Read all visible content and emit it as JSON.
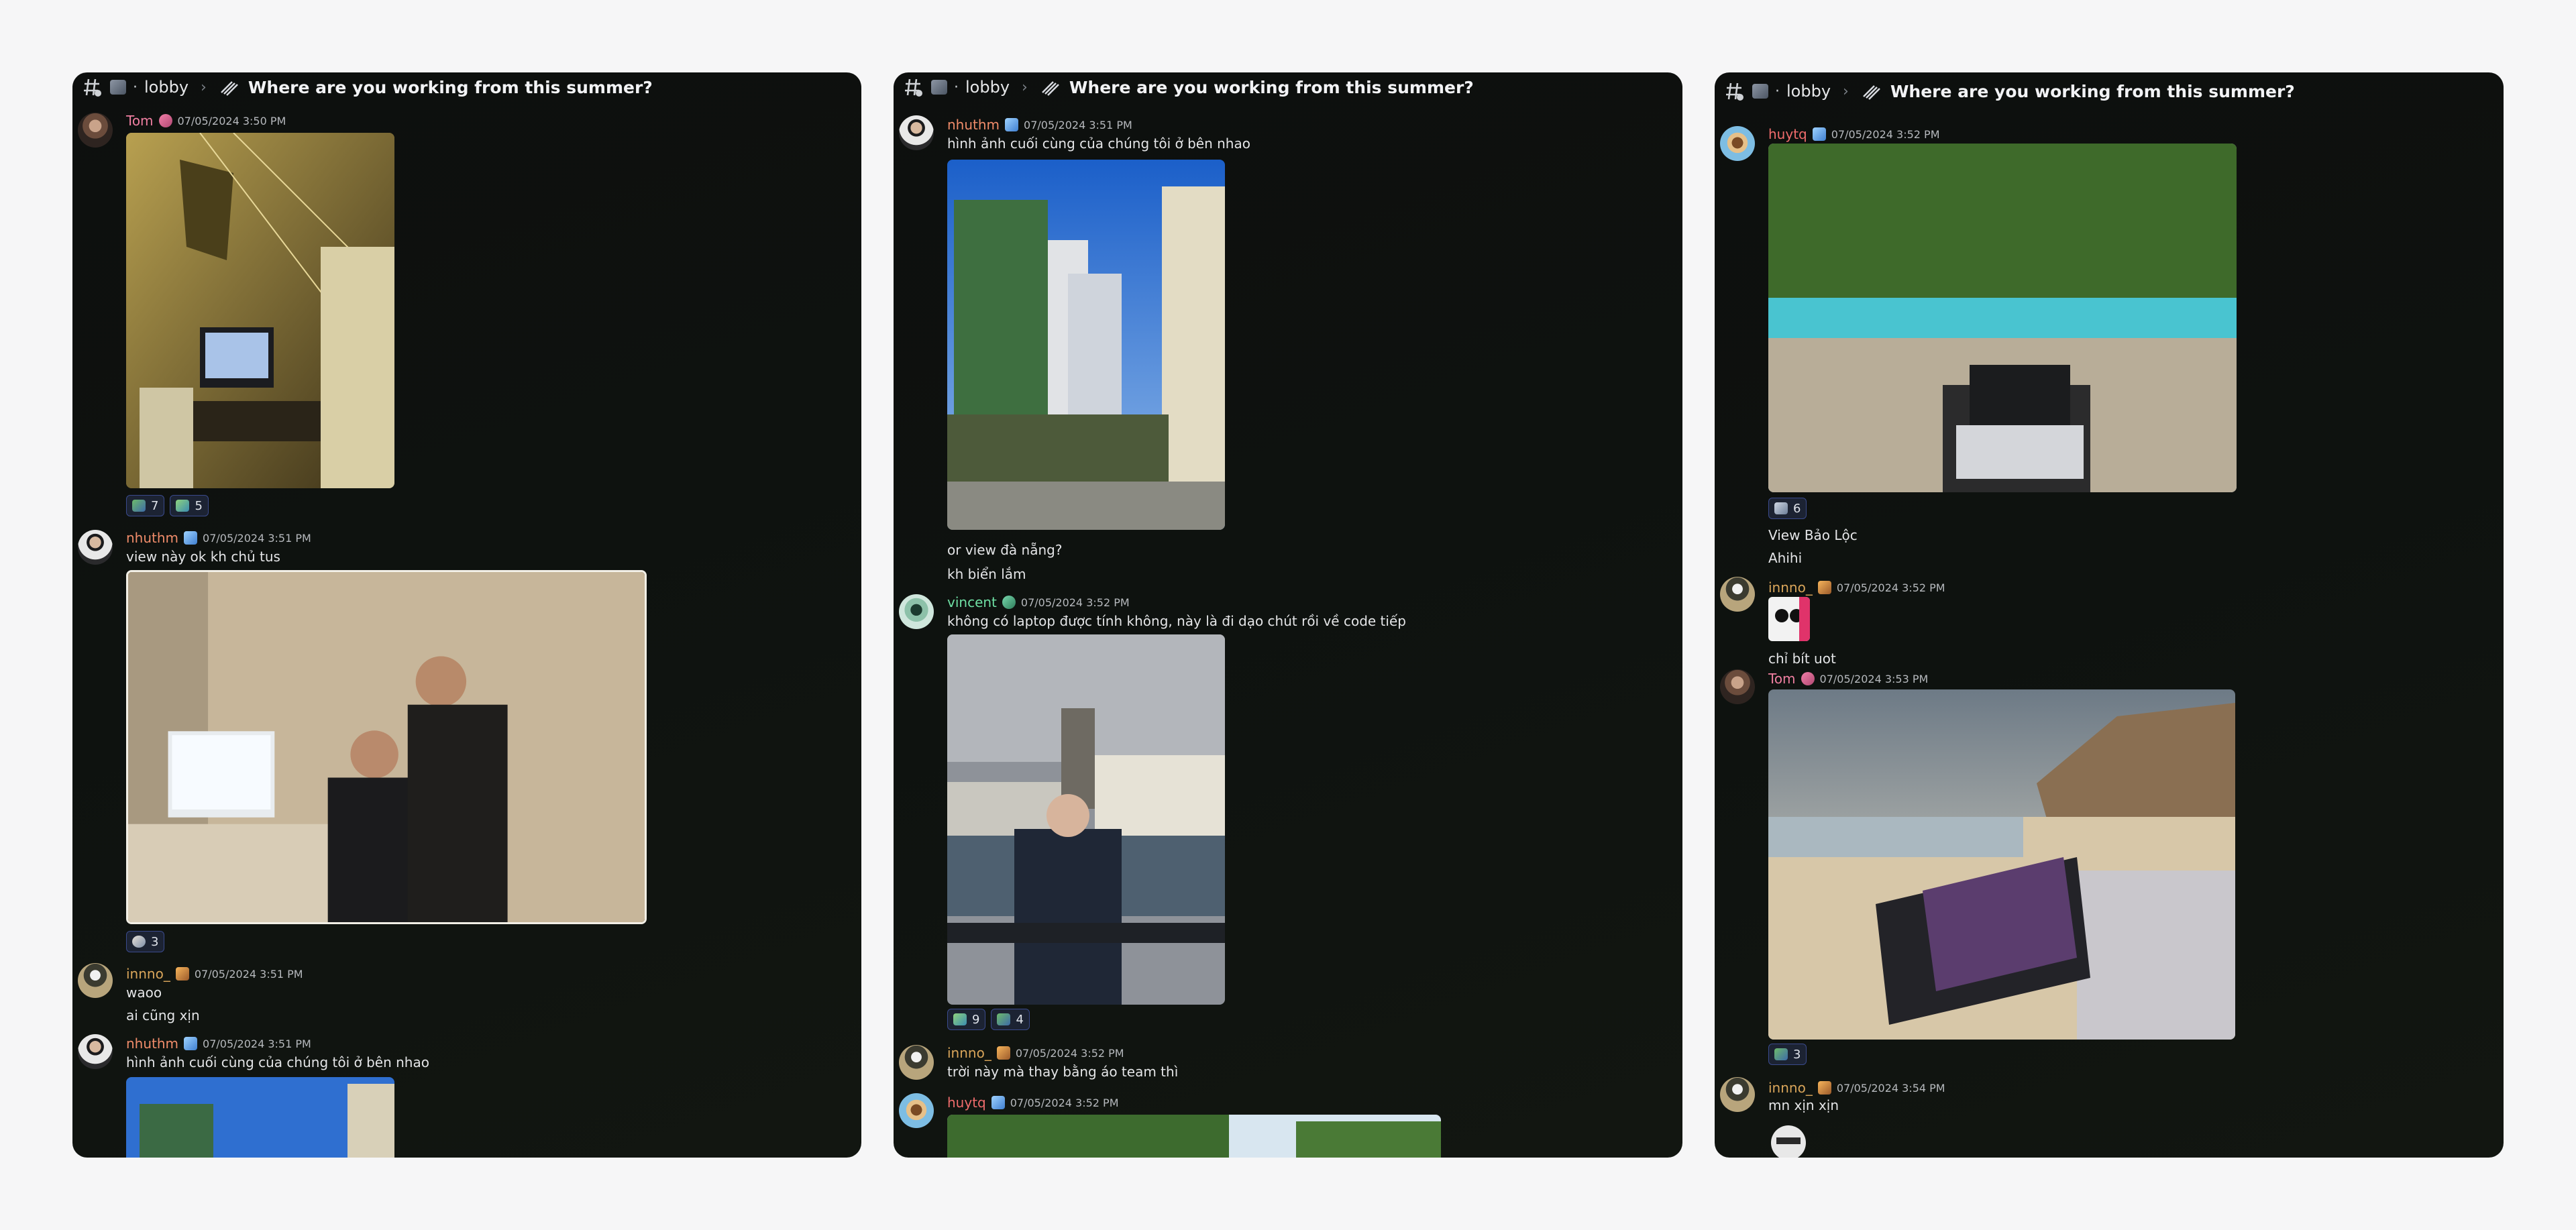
{
  "channel": "lobby",
  "thread_title": "Where are you working from this summer?",
  "panels": [
    {
      "messages": [
        {
          "user": "Tom",
          "time": "07/05/2024 3:50 PM",
          "reactions": [
            "7",
            "5"
          ]
        },
        {
          "user": "nhuthm",
          "time": "07/05/2024 3:51 PM",
          "text": "view này ok kh chủ tus",
          "reactions": [
            "3"
          ]
        },
        {
          "user": "innno_",
          "time": "07/05/2024 3:51 PM",
          "text1": "waoo",
          "text2": "ai cũng xịn"
        },
        {
          "user": "nhuthm",
          "time": "07/05/2024 3:51 PM",
          "text": "hình ảnh cuối cùng của chúng tôi ở bên nhao"
        }
      ]
    },
    {
      "messages": [
        {
          "user": "nhuthm",
          "time": "07/05/2024 3:51 PM",
          "text": "hình ảnh cuối cùng của chúng tôi ở bên nhao",
          "text2": "or view đà nẵng?",
          "text3": "kh biển lắm"
        },
        {
          "user": "vincent",
          "time": "07/05/2024 3:52 PM",
          "text": "không có laptop được tính không, này là đi dạo chút rồi về code tiếp",
          "reactions": [
            "9",
            "4"
          ]
        },
        {
          "user": "innno_",
          "time": "07/05/2024 3:52 PM",
          "text": "trời này mà thay bằng áo team thì"
        },
        {
          "user": "huytq",
          "time": "07/05/2024 3:52 PM"
        }
      ]
    },
    {
      "messages": [
        {
          "user": "huytq",
          "time": "07/05/2024 3:52 PM",
          "reactions": [
            "6"
          ],
          "text1": "View Bảo Lộc",
          "text2": "Ahihi"
        },
        {
          "user": "innno_",
          "time": "07/05/2024 3:52 PM",
          "text": "chỉ bít uot"
        },
        {
          "user": "Tom",
          "time": "07/05/2024 3:53 PM",
          "reactions": [
            "3"
          ]
        },
        {
          "user": "innno_",
          "time": "07/05/2024 3:54 PM",
          "text": "mn xịn xịn"
        }
      ]
    }
  ],
  "icons": {
    "thread": "thread-hash-icon",
    "board": "board-icon",
    "forum": "forum-post-icon"
  }
}
